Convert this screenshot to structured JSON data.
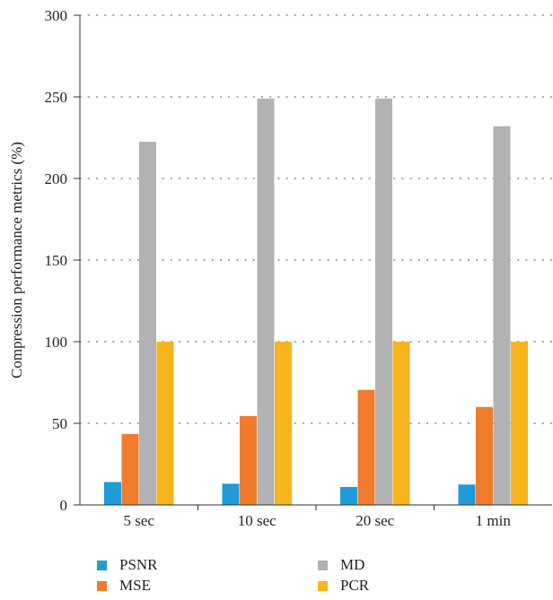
{
  "chart_data": {
    "type": "bar",
    "categories": [
      "5 sec",
      "10 sec",
      "20 sec",
      "1 min"
    ],
    "series": [
      {
        "name": "PSNR",
        "values": [
          14,
          13,
          11,
          12.5
        ]
      },
      {
        "name": "MSE",
        "values": [
          43.5,
          54.5,
          70.5,
          60
        ]
      },
      {
        "name": "MD",
        "values": [
          222.5,
          249,
          249,
          232
        ]
      },
      {
        "name": "PCR",
        "values": [
          100,
          100,
          100,
          100
        ]
      }
    ],
    "colors": [
      "#1f9bd7",
      "#f07b2d",
      "#b2b2b4",
      "#f8b41c"
    ],
    "ylabel": "Compression performance metrics (%)",
    "xlabel": "",
    "ylim": [
      0,
      300
    ],
    "yticks": [
      0,
      50,
      100,
      150,
      200,
      250,
      300
    ],
    "grid": "horizontal-dotted",
    "legend_position": "bottom"
  }
}
